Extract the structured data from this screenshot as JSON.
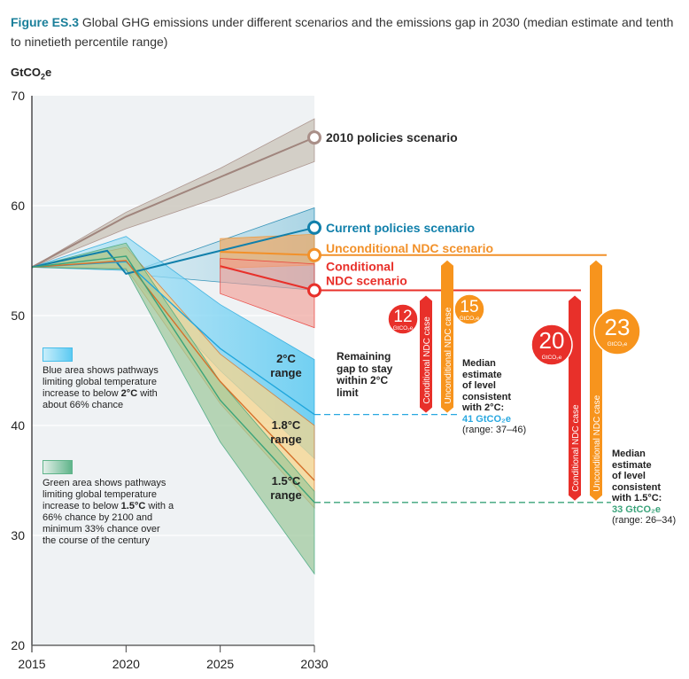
{
  "figure": {
    "label": "Figure ES.3",
    "caption": "Global GHG emissions under different scenarios and the emissions gap in 2030 (median estimate and tenth to ninetieth percentile range)"
  },
  "chart_data": {
    "type": "line",
    "title": "Global GHG emissions under different scenarios and the emissions gap in 2030 (median estimate and tenth to ninetieth percentile range)",
    "ylabel": "GtCO2e",
    "xlabel": "",
    "xlim": [
      2015,
      2030
    ],
    "ylim": [
      20,
      70
    ],
    "x_ticks": [
      "2015",
      "2020",
      "2025",
      "2030"
    ],
    "y_ticks": [
      "20",
      "30",
      "40",
      "50",
      "60",
      "70"
    ],
    "grid": true,
    "series": [
      {
        "name": "2010 policies scenario",
        "color": "#a0857d",
        "band_color": "#cfcbc2",
        "x": [
          2015,
          2020,
          2025,
          2030
        ],
        "median": [
          54.4,
          59.0,
          62.6,
          66.2
        ],
        "upper": [
          54.4,
          59.4,
          63.4,
          67.9
        ],
        "lower": [
          54.4,
          57.9,
          60.8,
          64.0
        ]
      },
      {
        "name": "Current policies scenario",
        "color": "#1180ab",
        "band_color": "#9fd2e6",
        "x": [
          2015,
          2019,
          2020,
          2030
        ],
        "median": [
          54.4,
          55.9,
          53.8,
          58.0
        ],
        "upper": [
          54.4,
          55.9,
          53.8,
          59.8
        ],
        "lower": [
          54.4,
          55.9,
          53.8,
          52.3
        ]
      },
      {
        "name": "Unconditional NDC scenario",
        "color": "#f2912a",
        "band_color": "#f3b878",
        "x": [
          2025,
          2030
        ],
        "median": [
          55.8,
          55.5
        ],
        "upper": [
          57.0,
          57.4
        ],
        "lower": [
          54.3,
          54.6
        ]
      },
      {
        "name": "Conditional NDC scenario",
        "color": "#e8302a",
        "band_color": "#f3a29a",
        "x": [
          2025,
          2030
        ],
        "median": [
          54.5,
          52.3
        ],
        "upper": [
          55.2,
          54.7
        ],
        "lower": [
          52.0,
          48.9
        ]
      },
      {
        "name": "2°C range",
        "color": "#20a6dc",
        "band_color": "#7fd3f3",
        "x": [
          2015,
          2020,
          2025,
          2030
        ],
        "median": [
          54.4,
          54.9,
          47.0,
          41.0
        ],
        "upper": [
          54.4,
          57.2,
          51.0,
          46.0
        ],
        "lower": [
          54.4,
          54.1,
          45.0,
          37.0
        ]
      },
      {
        "name": "1.8°C range",
        "color": "#d5702b",
        "band_color": "#f5d48c",
        "x": [
          2015,
          2020,
          2025,
          2030
        ],
        "median": [
          54.4,
          55.0,
          44.0,
          35.0
        ],
        "upper": [
          54.4,
          56.2,
          46.5,
          40.0
        ],
        "lower": [
          54.4,
          54.3,
          42.0,
          32.5
        ]
      },
      {
        "name": "1.5°C range",
        "color": "#3aa37a",
        "band_color": "#a9c98a",
        "x": [
          2015,
          2020,
          2025,
          2030
        ],
        "median": [
          54.4,
          55.4,
          42.3,
          33.0
        ],
        "upper": [
          54.4,
          56.6,
          44.0,
          34.0
        ],
        "lower": [
          54.4,
          54.2,
          38.5,
          26.5
        ]
      }
    ],
    "gap_markers": [
      {
        "target": "2°C",
        "case": "Conditional NDC case",
        "gap": 12,
        "unit": "GtCO2e",
        "from": 52.3,
        "to": 41,
        "color": "#e8302a"
      },
      {
        "target": "2°C",
        "case": "Unconditional NDC case",
        "gap": 15,
        "unit": "GtCO2e",
        "from": 55.5,
        "to": 41,
        "color": "#f7941d"
      },
      {
        "target": "1.5°C",
        "case": "Conditional NDC case",
        "gap": 20,
        "unit": "GtCO2e",
        "from": 52.3,
        "to": 33,
        "color": "#e8302a"
      },
      {
        "target": "1.5°C",
        "case": "Unconditional NDC case",
        "gap": 23,
        "unit": "GtCO2e",
        "from": 55.5,
        "to": 33,
        "color": "#f7941d"
      }
    ],
    "reference_levels": [
      {
        "name": "2°C",
        "median": 41,
        "range": [
          37,
          46
        ],
        "color": "#29a8e0"
      },
      {
        "name": "1.5°C",
        "median": 33,
        "range": [
          26,
          34
        ],
        "color": "#3aa37a"
      }
    ]
  },
  "labels": {
    "unit_main": "GtCO",
    "unit_sub": "2",
    "unit_tail": "e",
    "policies2010": "2010 policies scenario",
    "current": "Current policies scenario",
    "uncond": "Unconditional NDC scenario",
    "cond_line1": "Conditional",
    "cond_line2": "NDC scenario",
    "range2_l1": "2°C",
    "range2_l2": "range",
    "range18_l1": "1.8°C",
    "range18_l2": "range",
    "range15_l1": "1.5°C",
    "range15_l2": "range",
    "remaining_gap": [
      "Remaining",
      "gap to stay",
      "within 2°C",
      "limit"
    ],
    "cond_case": "Conditional NDC case",
    "uncond_case": "Unconditional NDC case",
    "bubble_unit": "GtCO₂e",
    "median2": [
      "Median",
      "estimate",
      "of level",
      "consistent",
      "with 2°C:"
    ],
    "median2_value": "41 GtCO₂e",
    "median2_range": "(range: 37–46)",
    "median15": [
      "Median",
      "estimate",
      "of level",
      "consistent",
      "with 1.5°C:"
    ],
    "median15_value": "33 GtCO₂e",
    "median15_range": "(range: 26–34)"
  },
  "legend": {
    "blue_text_pre": "Blue area shows pathways limiting global temperature increase to below ",
    "blue_bold": "2°C",
    "blue_text_post": " with about 66% chance",
    "green_text_pre": "Green area shows pathways limiting global temperature increase to below ",
    "green_bold": "1.5°C",
    "green_text_post": " with a 66% chance by 2100 and minimum 33% chance over the course of the century"
  }
}
